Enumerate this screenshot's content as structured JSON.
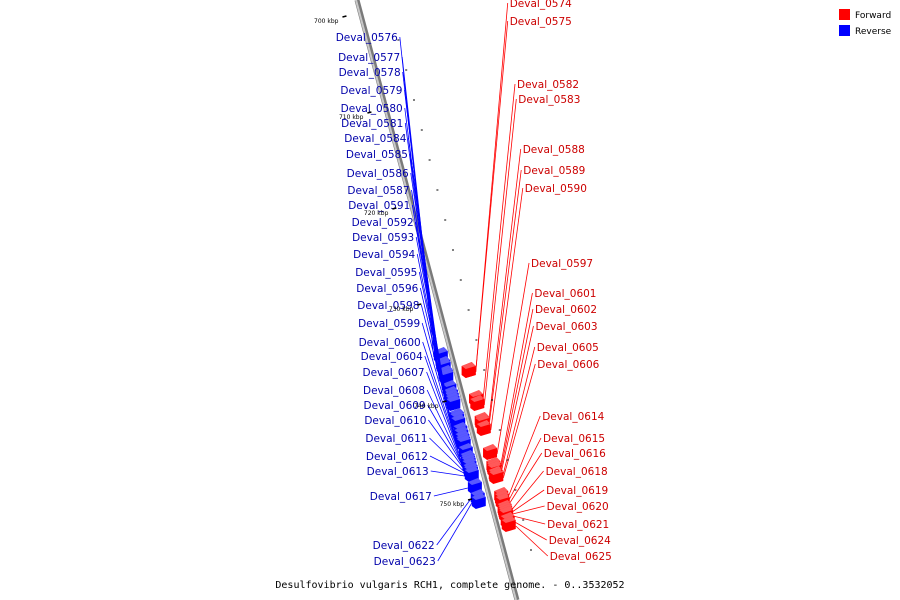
{
  "caption": "Desulfovibrio vulgaris RCH1, complete genome. - 0..3532052",
  "legend": [
    {
      "label": "Forward",
      "color": "#ff0000"
    },
    {
      "label": "Reverse",
      "color": "#0000ff"
    }
  ],
  "colors": {
    "forward": "#ff0000",
    "reverse": "#0000ff",
    "axis": "#999999"
  },
  "ticks": [
    "700 kbp",
    "710 kbp",
    "720 kbp",
    "730 kbp",
    "740 kbp",
    "750 kbp"
  ],
  "forward_genes": [
    "Deval_0574",
    "Deval_0575",
    "Deval_0582",
    "Deval_0583",
    "Deval_0588",
    "Deval_0589",
    "Deval_0590",
    "Deval_0597",
    "Deval_0601",
    "Deval_0602",
    "Deval_0603",
    "Deval_0605",
    "Deval_0606",
    "Deval_0614",
    "Deval_0615",
    "Deval_0616",
    "Deval_0618",
    "Deval_0619",
    "Deval_0620",
    "Deval_0621",
    "Deval_0624",
    "Deval_0625"
  ],
  "reverse_genes": [
    "Deval_0576",
    "Deval_0577",
    "Deval_0578",
    "Deval_0579",
    "Deval_0580",
    "Deval_0581",
    "Deval_0584",
    "Deval_0585",
    "Deval_0586",
    "Deval_0587",
    "Deval_0591",
    "Deval_0592",
    "Deval_0593",
    "Deval_0594",
    "Deval_0595",
    "Deval_0596",
    "Deval_0598",
    "Deval_0599",
    "Deval_0600",
    "Deval_0604",
    "Deval_0607",
    "Deval_0608",
    "Deval_0609",
    "Deval_0610",
    "Deval_0611",
    "Deval_0612",
    "Deval_0613",
    "Deval_0617",
    "Deval_0622",
    "Deval_0623"
  ]
}
